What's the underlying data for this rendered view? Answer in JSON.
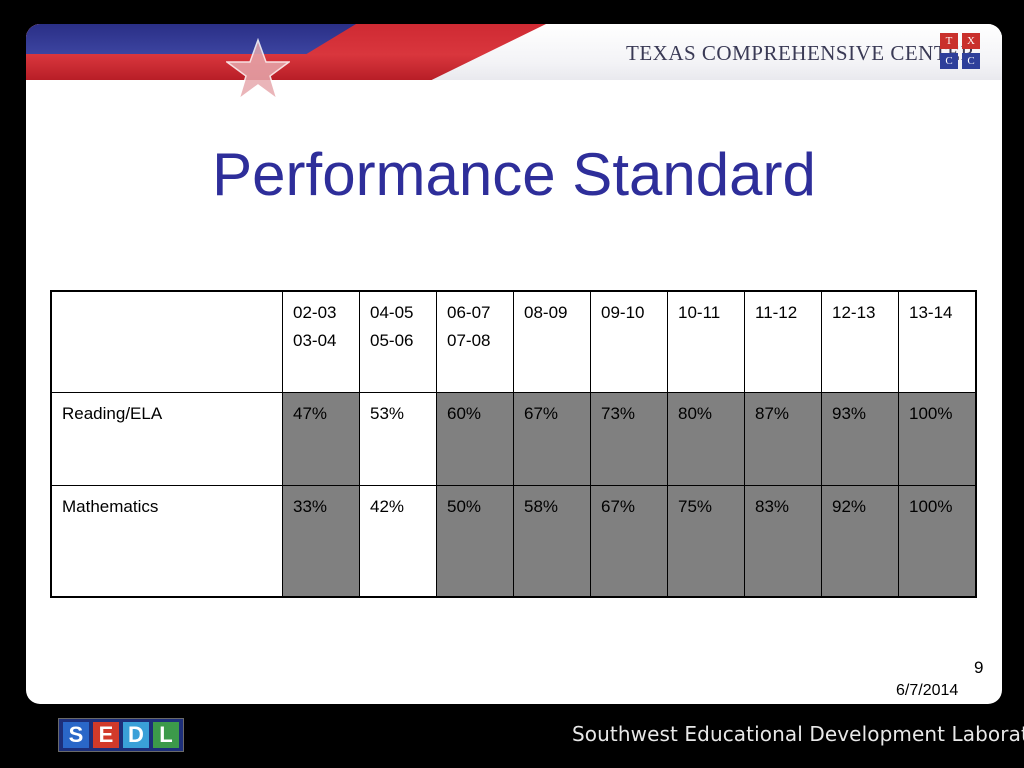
{
  "header": {
    "org_name": "TEXAS COMPREHENSIVE CENTER",
    "logo_letters": [
      "T",
      "X",
      "C",
      "C"
    ]
  },
  "slide": {
    "title": "Performance Standard",
    "page_number": "9",
    "date": "6/7/2014"
  },
  "table": {
    "header": [
      "",
      "02-03\n03-04",
      "04-05\n05-06",
      "06-07\n07-08",
      "08-09",
      "09-10",
      "10-11",
      "11-12",
      "12-13",
      "13-14"
    ],
    "rows": [
      {
        "label": "Reading/ELA",
        "values": [
          "47%",
          "53%",
          "60%",
          "67%",
          "73%",
          "80%",
          "87%",
          "93%",
          "100%"
        ]
      },
      {
        "label": "Mathematics",
        "values": [
          "33%",
          "42%",
          "50%",
          "58%",
          "67%",
          "75%",
          "83%",
          "92%",
          "100%"
        ]
      }
    ],
    "shaded_columns": [
      1,
      3,
      4,
      5,
      6,
      7,
      8,
      9
    ],
    "shade_color": "#808080"
  },
  "footer": {
    "logo_letters": [
      "S",
      "E",
      "D",
      "L"
    ],
    "logo_colors": [
      "#2a67c8",
      "#d23a2a",
      "#3aa0d8",
      "#3c9a4a"
    ],
    "text": "Southwest Educational Development Laboratory"
  }
}
